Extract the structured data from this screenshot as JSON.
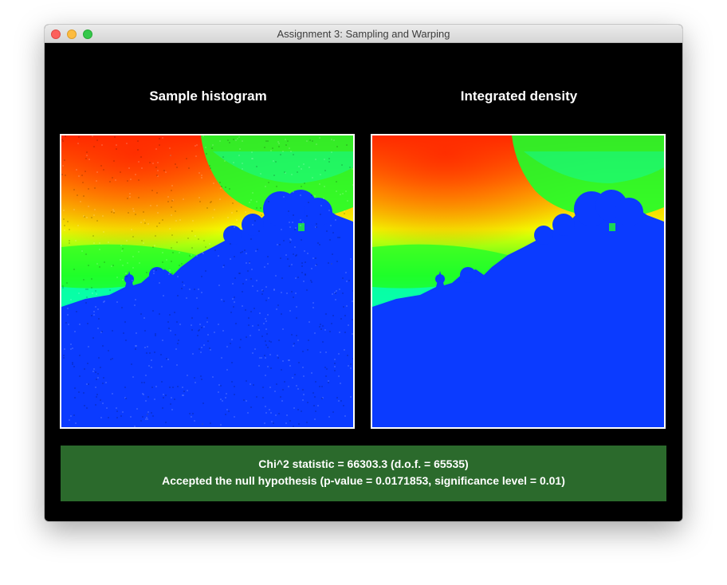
{
  "window": {
    "title": "Assignment 3: Sampling and Warping"
  },
  "panels": {
    "left_title": "Sample histogram",
    "right_title": "Integrated density"
  },
  "heatmap_colors": {
    "hot": "#ff2a00",
    "warm": "#ffb000",
    "yellow": "#f2ff00",
    "green": "#1fff2a",
    "cyan": "#00ffd0",
    "blue": "#0b3bff"
  },
  "status": {
    "background": "#2b6a2c",
    "line1": "Chi^2 statistic = 66303.3 (d.o.f. = 65535)",
    "line2": "Accepted the null hypothesis (p-value = 0.0171853, significance level = 0.01)"
  }
}
